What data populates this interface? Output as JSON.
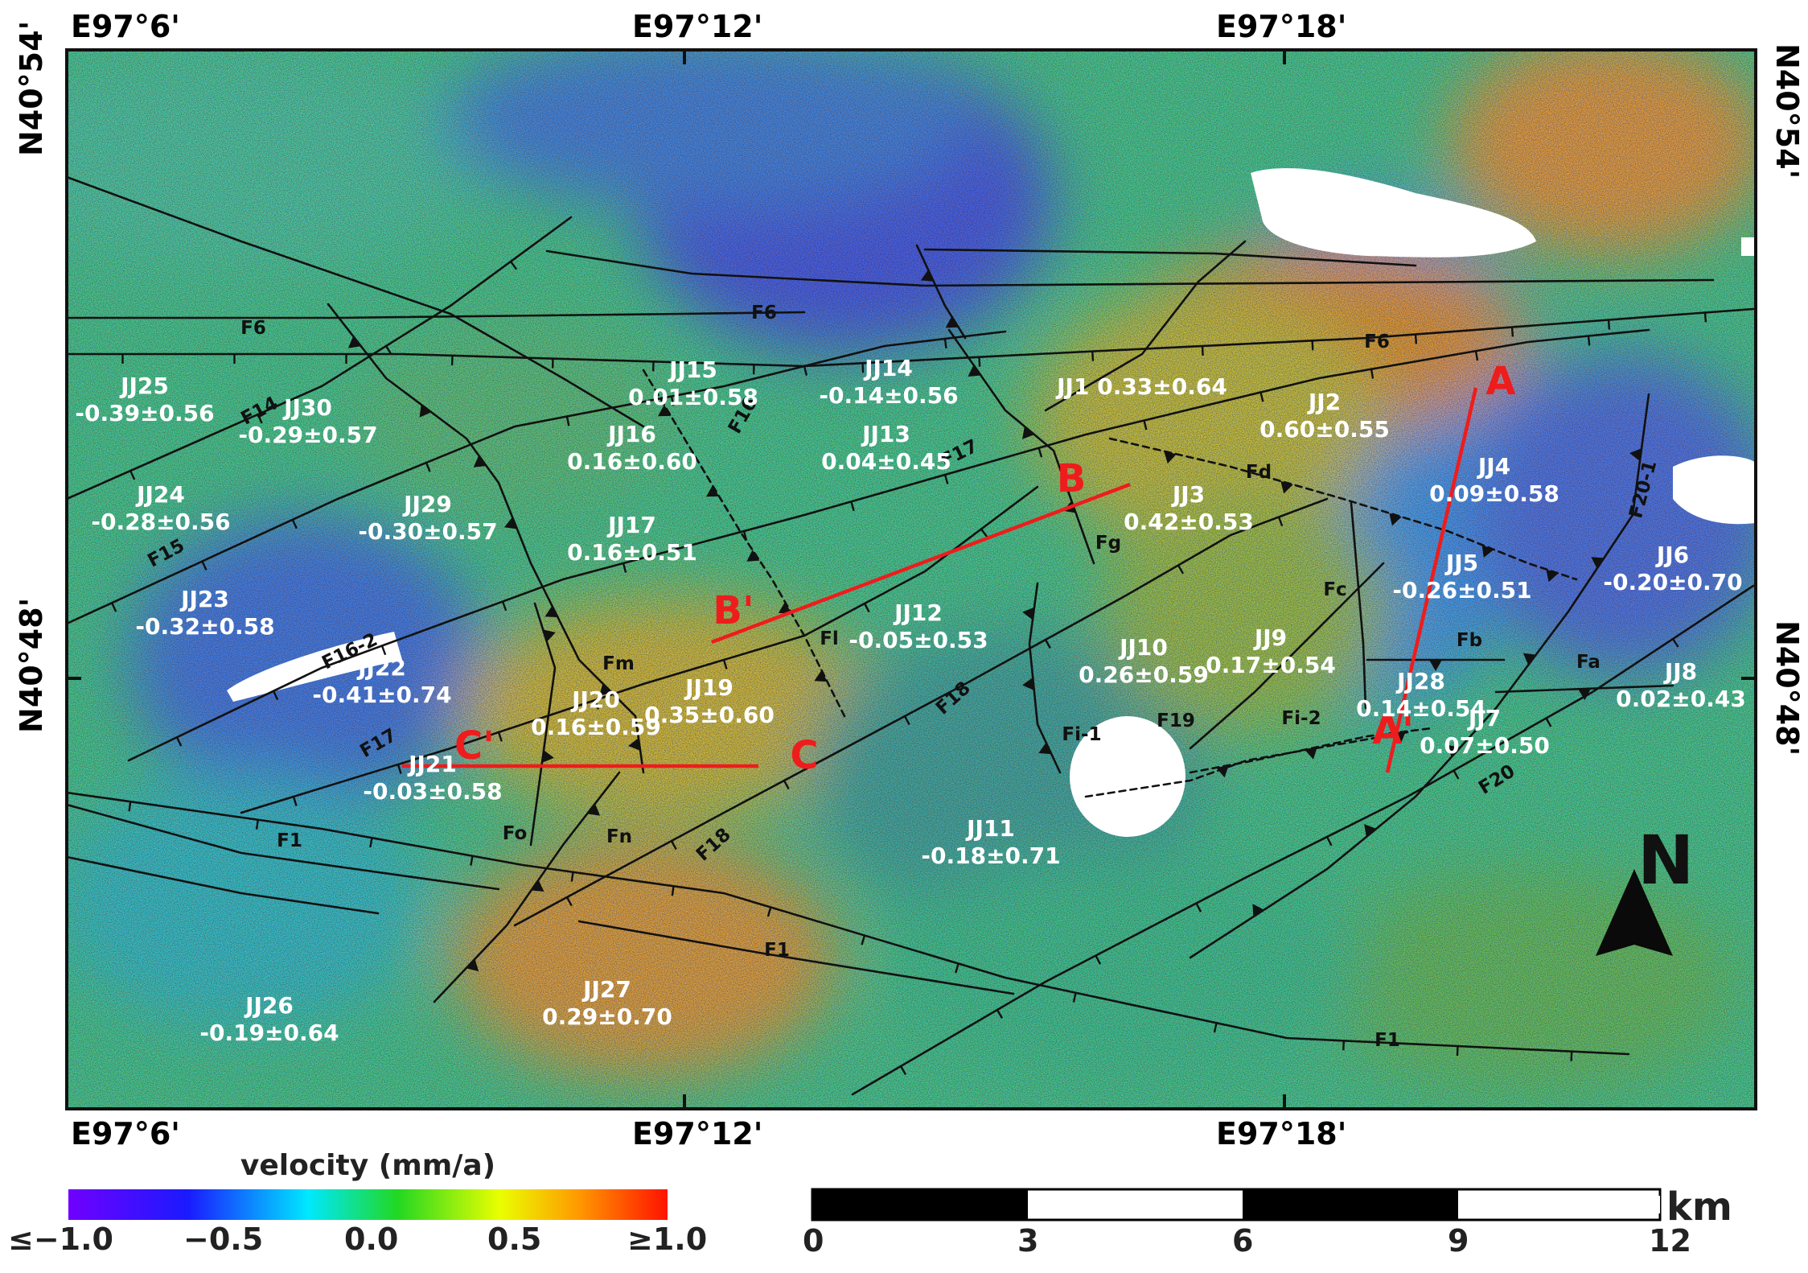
{
  "coords": {
    "top": [
      "E97°6'",
      "E97°12'",
      "E97°18'"
    ],
    "bottom": [
      "E97°6'",
      "E97°12'",
      "E97°18'"
    ],
    "left": [
      "N40°54'",
      "N40°48'"
    ],
    "right": [
      "N40°54'",
      "N40°48'"
    ]
  },
  "colorbar": {
    "title": "velocity (mm/a)",
    "ticks": [
      "≤−1.0",
      "−0.5",
      "0.0",
      "0.5",
      "≥1.0"
    ],
    "colors": [
      "#7000ff",
      "#1a1aff",
      "#00e8ff",
      "#22d822",
      "#eaff00",
      "#ff9a00",
      "#ff1200"
    ]
  },
  "scalebar": {
    "ticks": [
      "0",
      "3",
      "6",
      "9",
      "12"
    ],
    "unit": "km"
  },
  "north": {
    "label": "N"
  },
  "profile_color": "#ee1c1c",
  "faults": [
    {
      "id": "F6",
      "label": "F6"
    },
    {
      "id": "F6b",
      "label": "F6"
    },
    {
      "id": "F6c",
      "label": "F6"
    },
    {
      "id": "F14",
      "label": "F14"
    },
    {
      "id": "F15",
      "label": "F15"
    },
    {
      "id": "F16",
      "label": "F16"
    },
    {
      "id": "F16-2",
      "label": "F16-2"
    },
    {
      "id": "F17",
      "label": "F17"
    },
    {
      "id": "F17b",
      "label": "F17"
    },
    {
      "id": "F18",
      "label": "F18"
    },
    {
      "id": "F18b",
      "label": "F18"
    },
    {
      "id": "F19",
      "label": "F19"
    },
    {
      "id": "F1",
      "label": "F1"
    },
    {
      "id": "F1b",
      "label": "F1"
    },
    {
      "id": "F1c",
      "label": "F1"
    },
    {
      "id": "F20-1",
      "label": "F20-1"
    },
    {
      "id": "F20",
      "label": "F20"
    },
    {
      "id": "Fa",
      "label": "Fa"
    },
    {
      "id": "Fb",
      "label": "Fb"
    },
    {
      "id": "Fc",
      "label": "Fc"
    },
    {
      "id": "Fd",
      "label": "Fd"
    },
    {
      "id": "Fg",
      "label": "Fg"
    },
    {
      "id": "Fi-1",
      "label": "Fi-1"
    },
    {
      "id": "Fi-2",
      "label": "Fi-2"
    },
    {
      "id": "Fl",
      "label": "Fl"
    },
    {
      "id": "Fm",
      "label": "Fm"
    },
    {
      "id": "Fn",
      "label": "Fn"
    },
    {
      "id": "Fo",
      "label": "Fo"
    }
  ],
  "blocks": [
    {
      "name": "JJ1",
      "value": "0.33±0.64"
    },
    {
      "name": "JJ2",
      "value": "0.60±0.55"
    },
    {
      "name": "JJ3",
      "value": "0.42±0.53"
    },
    {
      "name": "JJ4",
      "value": "0.09±0.58"
    },
    {
      "name": "JJ5",
      "value": "-0.26±0.51"
    },
    {
      "name": "JJ6",
      "value": "-0.20±0.70"
    },
    {
      "name": "JJ7",
      "value": "0.07±0.50"
    },
    {
      "name": "JJ8",
      "value": "0.02±0.43"
    },
    {
      "name": "JJ9",
      "value": "0.17±0.54"
    },
    {
      "name": "JJ10",
      "value": "0.26±0.59"
    },
    {
      "name": "JJ11",
      "value": "-0.18±0.71"
    },
    {
      "name": "JJ12",
      "value": "-0.05±0.53"
    },
    {
      "name": "JJ13",
      "value": "0.04±0.45"
    },
    {
      "name": "JJ14",
      "value": "-0.14±0.56"
    },
    {
      "name": "JJ15",
      "value": "0.01±0.58"
    },
    {
      "name": "JJ16",
      "value": "0.16±0.60"
    },
    {
      "name": "JJ17",
      "value": "0.16±0.51"
    },
    {
      "name": "JJ19",
      "value": "0.35±0.60"
    },
    {
      "name": "JJ20",
      "value": "0.16±0.59"
    },
    {
      "name": "JJ21",
      "value": "-0.03±0.58"
    },
    {
      "name": "JJ22",
      "value": "-0.41±0.74"
    },
    {
      "name": "JJ23",
      "value": "-0.32±0.58"
    },
    {
      "name": "JJ24",
      "value": "-0.28±0.56"
    },
    {
      "name": "JJ25",
      "value": "-0.39±0.56"
    },
    {
      "name": "JJ26",
      "value": "-0.19±0.64"
    },
    {
      "name": "JJ27",
      "value": "0.29±0.70"
    },
    {
      "name": "JJ28",
      "value": "0.14±0.54"
    },
    {
      "name": "JJ29",
      "value": "-0.30±0.57"
    },
    {
      "name": "JJ30",
      "value": "-0.29±0.57"
    }
  ],
  "profiles": [
    {
      "start": "A",
      "end": "A'"
    },
    {
      "start": "B",
      "end": "B'"
    },
    {
      "start": "C",
      "end": "C'"
    }
  ]
}
